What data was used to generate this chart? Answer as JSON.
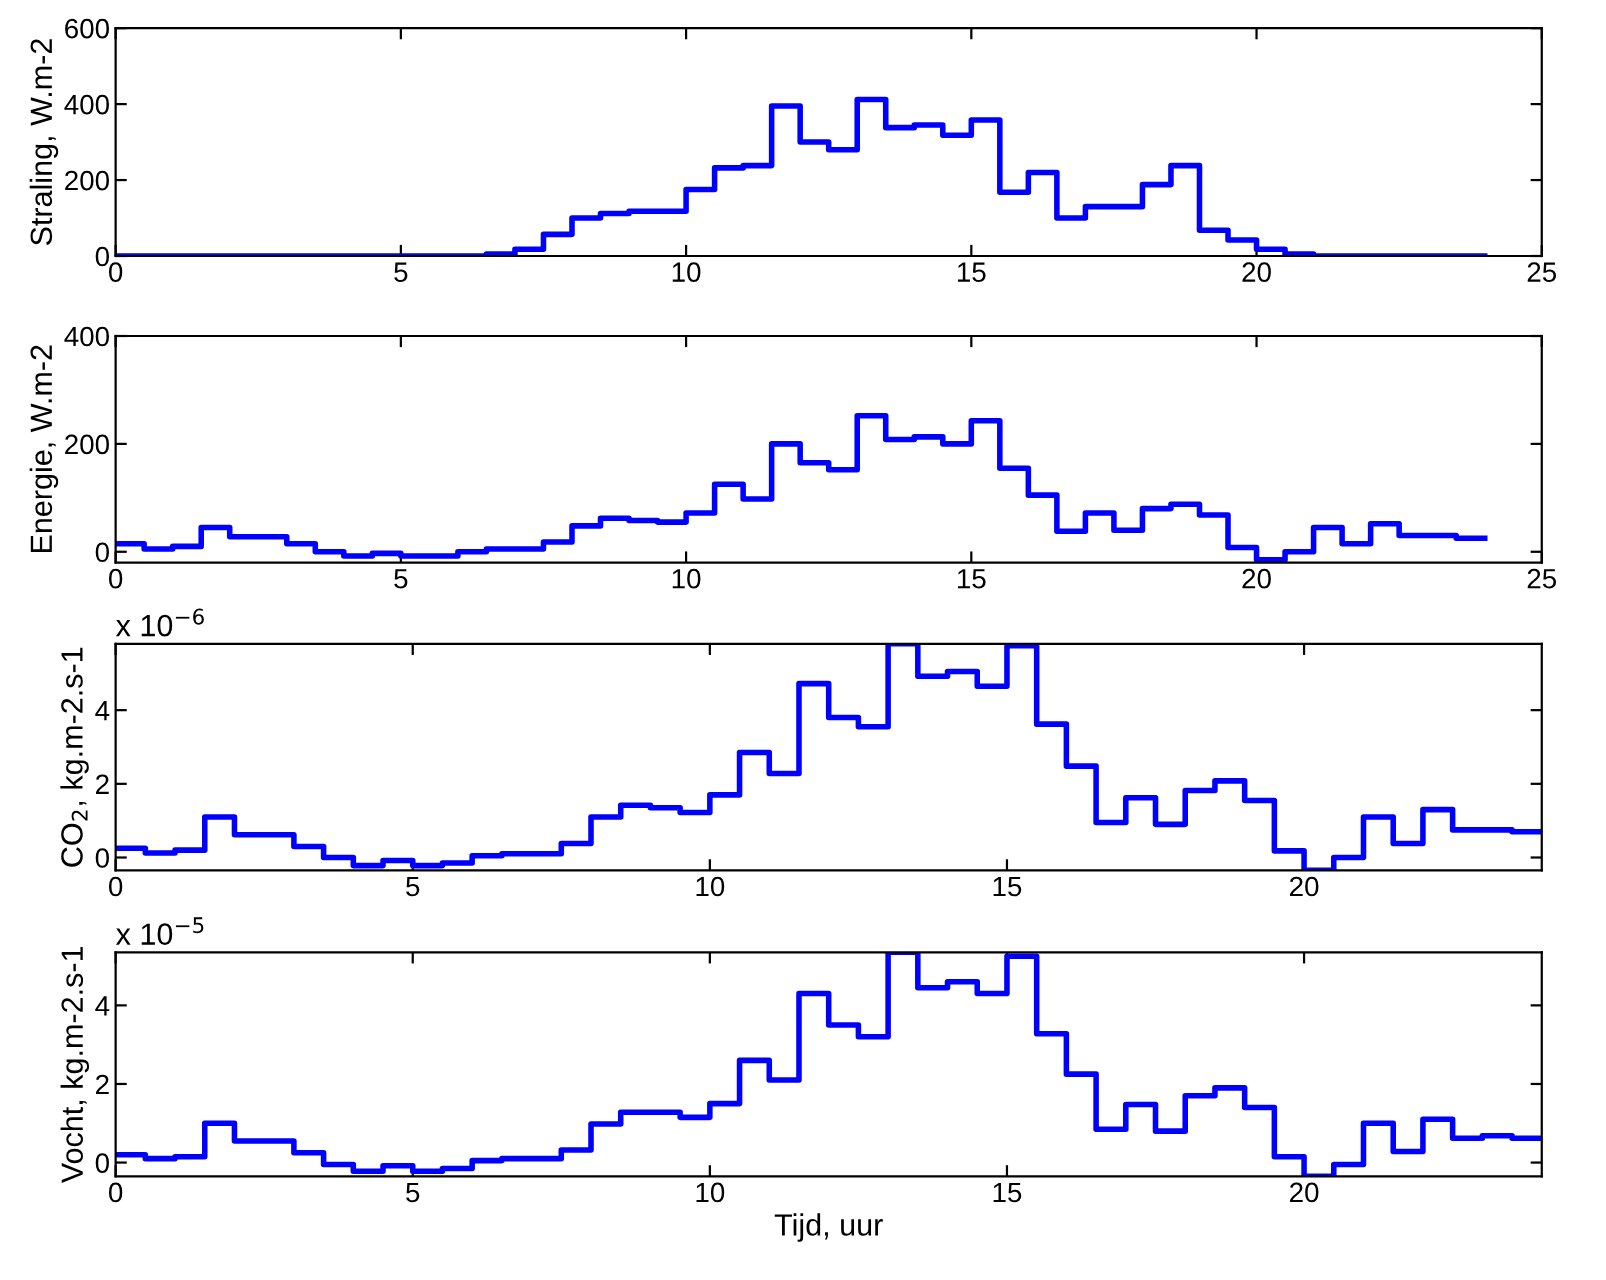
{
  "chart_data": [
    {
      "type": "step",
      "ylabel": "Straling, W.m-2",
      "xlim": [
        0,
        25
      ],
      "ylim": [
        0,
        600
      ],
      "xticks": [
        0,
        5,
        10,
        15,
        20,
        25
      ],
      "yticks": [
        0,
        200,
        400,
        600
      ],
      "grid": false,
      "x": [
        0,
        0.5,
        1,
        1.5,
        2,
        2.5,
        3,
        3.5,
        4,
        4.5,
        5,
        5.5,
        6,
        6.5,
        7,
        7.5,
        8,
        8.5,
        9,
        9.5,
        10,
        10.5,
        11,
        11.5,
        12,
        12.5,
        13,
        13.5,
        14,
        14.5,
        15,
        15.5,
        16,
        16.5,
        17,
        17.5,
        18,
        18.5,
        19,
        19.5,
        20,
        20.5,
        21,
        21.5,
        22,
        22.5,
        23,
        23.5,
        24
      ],
      "series": [
        {
          "color": "#0000ff",
          "values": [
            0,
            0,
            0,
            0,
            0,
            0,
            0,
            0,
            0,
            0,
            0,
            0,
            0,
            5,
            18,
            57,
            100,
            112,
            118,
            118,
            175,
            232,
            238,
            395,
            300,
            280,
            412,
            338,
            345,
            318,
            358,
            168,
            220,
            100,
            130,
            130,
            188,
            238,
            68,
            42,
            18,
            5,
            0,
            0,
            0,
            0,
            0,
            0,
            0
          ]
        }
      ]
    },
    {
      "type": "step",
      "ylabel": "Energie, W.m-2",
      "xlim": [
        0,
        25
      ],
      "ylim": [
        -20,
        400
      ],
      "xticks": [
        0,
        5,
        10,
        15,
        20,
        25
      ],
      "yticks": [
        0,
        200,
        400
      ],
      "grid": false,
      "x": [
        0,
        0.5,
        1,
        1.5,
        2,
        2.5,
        3,
        3.5,
        4,
        4.5,
        5,
        5.5,
        6,
        6.5,
        7,
        7.5,
        8,
        8.5,
        9,
        9.5,
        10,
        10.5,
        11,
        11.5,
        12,
        12.5,
        13,
        13.5,
        14,
        14.5,
        15,
        15.5,
        16,
        16.5,
        17,
        17.5,
        18,
        18.5,
        19,
        19.5,
        20,
        20.5,
        21,
        21.5,
        22,
        22.5,
        23,
        23.5,
        24
      ],
      "series": [
        {
          "color": "#0000ff",
          "values": [
            15,
            5,
            10,
            45,
            28,
            28,
            15,
            0,
            -8,
            -3,
            -8,
            -8,
            0,
            5,
            5,
            18,
            48,
            62,
            58,
            55,
            72,
            125,
            98,
            200,
            165,
            152,
            252,
            208,
            213,
            200,
            243,
            155,
            105,
            38,
            72,
            40,
            80,
            88,
            68,
            8,
            -15,
            0,
            45,
            15,
            52,
            30,
            30,
            25,
            25
          ]
        }
      ]
    },
    {
      "type": "step",
      "ylabel": "CO$_{2}$, kg.m-2.s-1",
      "annotations": [
        "x 10$^{−6}$"
      ],
      "xlim": [
        0,
        24
      ],
      "ylim": [
        -0.35,
        5.8
      ],
      "xticks": [
        0,
        5,
        10,
        15,
        20
      ],
      "yticks": [
        0,
        2,
        4
      ],
      "grid": false,
      "x": [
        0,
        0.5,
        1,
        1.5,
        2,
        2.5,
        3,
        3.5,
        4,
        4.5,
        5,
        5.5,
        6,
        6.5,
        7,
        7.5,
        8,
        8.5,
        9,
        9.5,
        10,
        10.5,
        11,
        11.5,
        12,
        12.5,
        13,
        13.5,
        14,
        14.5,
        15,
        15.5,
        16,
        16.5,
        17,
        17.5,
        18,
        18.5,
        19,
        19.5,
        20,
        20.5,
        21,
        21.5,
        22,
        22.5,
        23,
        23.5,
        24
      ],
      "series": [
        {
          "color": "#0000ff",
          "values": [
            0.25,
            0.12,
            0.2,
            1.1,
            0.62,
            0.62,
            0.3,
            0,
            -0.22,
            -0.08,
            -0.22,
            -0.15,
            0.05,
            0.1,
            0.1,
            0.38,
            1.1,
            1.42,
            1.35,
            1.22,
            1.7,
            2.85,
            2.28,
            4.72,
            3.8,
            3.55,
            5.8,
            4.92,
            5.05,
            4.65,
            5.75,
            3.62,
            2.48,
            0.95,
            1.62,
            0.9,
            1.82,
            2.08,
            1.55,
            0.18,
            -0.35,
            0,
            1.1,
            0.38,
            1.3,
            0.75,
            0.75,
            0.7,
            0.7
          ]
        }
      ]
    },
    {
      "type": "step",
      "ylabel": "Vocht, kg.m-2.s-1",
      "xlabel": "Tijd, uur",
      "annotations": [
        "x 10$^{−5}$"
      ],
      "xlim": [
        0,
        24
      ],
      "ylim": [
        -0.35,
        5.35
      ],
      "xticks": [
        0,
        5,
        10,
        15,
        20
      ],
      "yticks": [
        0,
        2,
        4
      ],
      "grid": false,
      "x": [
        0,
        0.5,
        1,
        1.5,
        2,
        2.5,
        3,
        3.5,
        4,
        4.5,
        5,
        5.5,
        6,
        6.5,
        7,
        7.5,
        8,
        8.5,
        9,
        9.5,
        10,
        10.5,
        11,
        11.5,
        12,
        12.5,
        13,
        13.5,
        14,
        14.5,
        15,
        15.5,
        16,
        16.5,
        17,
        17.5,
        18,
        18.5,
        19,
        19.5,
        20,
        20.5,
        21,
        21.5,
        22,
        22.5,
        23,
        23.5,
        24
      ],
      "series": [
        {
          "color": "#0000ff",
          "values": [
            0.2,
            0.1,
            0.15,
            1.0,
            0.55,
            0.55,
            0.25,
            -0.05,
            -0.22,
            -0.08,
            -0.22,
            -0.15,
            0.05,
            0.1,
            0.1,
            0.32,
            0.98,
            1.28,
            1.28,
            1.15,
            1.5,
            2.6,
            2.1,
            4.3,
            3.5,
            3.2,
            5.35,
            4.45,
            4.6,
            4.3,
            5.25,
            3.28,
            2.25,
            0.85,
            1.48,
            0.8,
            1.7,
            1.9,
            1.4,
            0.15,
            -0.35,
            -0.05,
            1.0,
            0.28,
            1.1,
            0.62,
            0.68,
            0.62,
            0.62
          ]
        }
      ]
    }
  ]
}
